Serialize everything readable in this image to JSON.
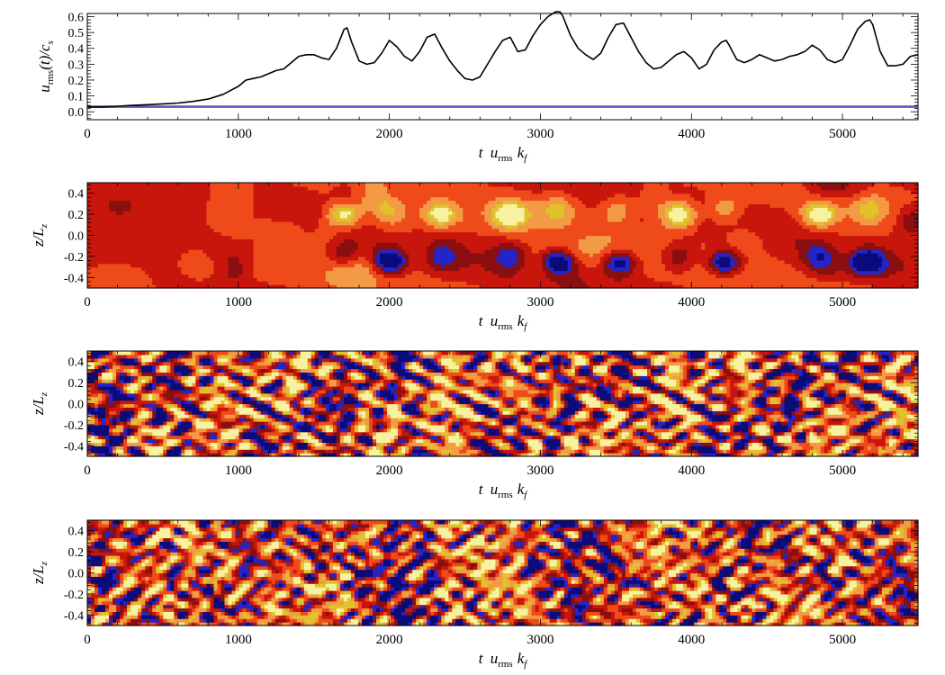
{
  "colors": {
    "line_main": "#000000",
    "line_blue": "#2a2ad0",
    "line_red": "#d03030",
    "cmap": [
      "#0b0b7a",
      "#2424c8",
      "#8a0f10",
      "#c8160c",
      "#ee4a1a",
      "#f39a45",
      "#e0c22a",
      "#f6f2a0"
    ]
  },
  "chart_data": [
    {
      "type": "line",
      "id": "urms",
      "ylabel_main": "u",
      "ylabel_sub": "rms",
      "ylabel_rest": "(t)/c",
      "ylabel_sub2": "s",
      "xlabel_t": "t",
      "xlabel_u": "u",
      "xlabel_sub": "rms",
      "xlabel_k": "k",
      "xlabel_ksub": "f",
      "xlim": [
        0,
        5500
      ],
      "ylim": [
        -0.05,
        0.62
      ],
      "xticks": [
        "0",
        "1000",
        "2000",
        "3000",
        "4000",
        "5000"
      ],
      "yticks": [
        "0.0",
        "0.1",
        "0.2",
        "0.3",
        "0.4",
        "0.5",
        "0.6"
      ],
      "series": [
        {
          "color": "black",
          "x": [
            0,
            100,
            200,
            300,
            400,
            500,
            600,
            700,
            800,
            900,
            1000,
            1050,
            1100,
            1150,
            1200,
            1250,
            1300,
            1350,
            1400,
            1450,
            1500,
            1550,
            1600,
            1650,
            1700,
            1720,
            1750,
            1800,
            1850,
            1900,
            1950,
            2000,
            2050,
            2100,
            2150,
            2200,
            2250,
            2300,
            2350,
            2400,
            2450,
            2500,
            2550,
            2600,
            2650,
            2700,
            2750,
            2800,
            2850,
            2900,
            2950,
            3000,
            3050,
            3100,
            3130,
            3150,
            3200,
            3250,
            3300,
            3350,
            3400,
            3450,
            3500,
            3550,
            3600,
            3650,
            3700,
            3750,
            3800,
            3850,
            3900,
            3950,
            4000,
            4050,
            4100,
            4150,
            4200,
            4230,
            4250,
            4300,
            4350,
            4400,
            4450,
            4500,
            4550,
            4600,
            4650,
            4700,
            4750,
            4800,
            4850,
            4900,
            4950,
            5000,
            5050,
            5100,
            5150,
            5180,
            5200,
            5250,
            5300,
            5350,
            5400,
            5450,
            5500
          ],
          "y": [
            0.03,
            0.03,
            0.035,
            0.04,
            0.045,
            0.05,
            0.055,
            0.065,
            0.08,
            0.11,
            0.16,
            0.2,
            0.21,
            0.22,
            0.24,
            0.26,
            0.27,
            0.31,
            0.35,
            0.36,
            0.36,
            0.34,
            0.33,
            0.4,
            0.52,
            0.53,
            0.44,
            0.32,
            0.3,
            0.31,
            0.37,
            0.45,
            0.41,
            0.35,
            0.32,
            0.38,
            0.47,
            0.49,
            0.4,
            0.32,
            0.26,
            0.21,
            0.2,
            0.22,
            0.3,
            0.38,
            0.45,
            0.47,
            0.38,
            0.39,
            0.48,
            0.55,
            0.6,
            0.63,
            0.63,
            0.6,
            0.48,
            0.4,
            0.36,
            0.33,
            0.37,
            0.47,
            0.55,
            0.56,
            0.47,
            0.38,
            0.31,
            0.27,
            0.28,
            0.32,
            0.36,
            0.38,
            0.34,
            0.27,
            0.3,
            0.39,
            0.44,
            0.45,
            0.42,
            0.33,
            0.31,
            0.33,
            0.36,
            0.34,
            0.32,
            0.33,
            0.35,
            0.36,
            0.38,
            0.42,
            0.39,
            0.33,
            0.31,
            0.33,
            0.42,
            0.52,
            0.57,
            0.58,
            0.55,
            0.38,
            0.29,
            0.29,
            0.3,
            0.35,
            0.36
          ]
        },
        {
          "color": "blue",
          "x": [
            0,
            5500
          ],
          "y": [
            0.035,
            0.035
          ]
        },
        {
          "color": "red",
          "x": [
            0,
            5500
          ],
          "y": [
            0.028,
            0.028
          ]
        }
      ]
    },
    {
      "type": "heatmap",
      "id": "heat1",
      "pattern": "dynamo",
      "ylabel": "z/L",
      "ylabel_sub": "z",
      "xlabel_t": "t",
      "xlabel_u": "u",
      "xlabel_sub": "rms",
      "xlabel_k": "k",
      "xlabel_ksub": "f",
      "xlim": [
        0,
        5500
      ],
      "ylim": [
        -0.5,
        0.5
      ],
      "xticks": [
        "0",
        "1000",
        "2000",
        "3000",
        "4000",
        "5000"
      ],
      "yticks": [
        "-0.4",
        "-0.2",
        "0.0",
        "0.2",
        "0.4"
      ],
      "blobs_t": [
        1700,
        2000,
        2340,
        2800,
        3120,
        3520,
        3920,
        4220,
        4850,
        5170
      ],
      "blobs_sign": [
        1,
        -1,
        1,
        1,
        -1,
        -1,
        1,
        -1,
        1,
        -1
      ]
    },
    {
      "type": "heatmap",
      "id": "heat2",
      "pattern": "noise",
      "seed": 7,
      "ylabel": "z/L",
      "ylabel_sub": "z",
      "xlabel_t": "t",
      "xlabel_u": "u",
      "xlabel_sub": "rms",
      "xlabel_k": "k",
      "xlabel_ksub": "f",
      "xlim": [
        0,
        5500
      ],
      "ylim": [
        -0.5,
        0.5
      ],
      "xticks": [
        "0",
        "1000",
        "2000",
        "3000",
        "4000",
        "5000"
      ],
      "yticks": [
        "-0.4",
        "-0.2",
        "0.0",
        "0.2",
        "0.4"
      ]
    },
    {
      "type": "heatmap",
      "id": "heat3",
      "pattern": "noise",
      "seed": 19,
      "ylabel": "z/L",
      "ylabel_sub": "z",
      "xlabel_t": "t",
      "xlabel_u": "u",
      "xlabel_sub": "rms",
      "xlabel_k": "k",
      "xlabel_ksub": "f",
      "xlim": [
        0,
        5500
      ],
      "ylim": [
        -0.5,
        0.5
      ],
      "xticks": [
        "0",
        "1000",
        "2000",
        "3000",
        "4000",
        "5000"
      ],
      "yticks": [
        "-0.4",
        "-0.2",
        "0.0",
        "0.2",
        "0.4"
      ]
    }
  ]
}
